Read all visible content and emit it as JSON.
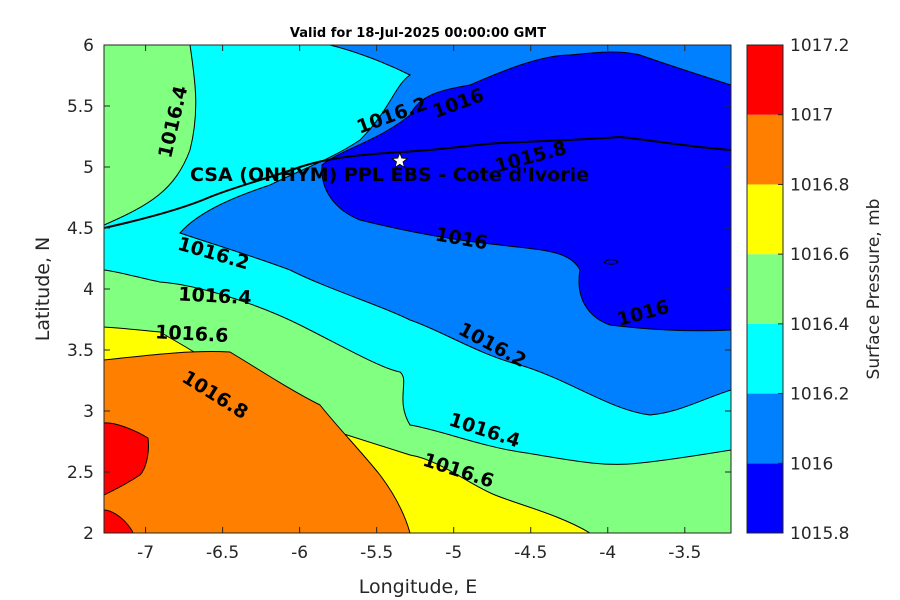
{
  "chart_data": {
    "type": "contour",
    "title": "Valid for 18-Jul-2025 00:00:00 GMT",
    "xlabel": "Longitude, E",
    "ylabel": "Latitude, N",
    "xlim": [
      -7.27,
      -3.2
    ],
    "ylim": [
      2,
      6
    ],
    "x_ticks": [
      -7,
      -6.5,
      -6,
      -5.5,
      -5,
      -4.5,
      -4,
      -3.5
    ],
    "x_tick_labels": [
      "-7",
      "-6.5",
      "-6",
      "-5.5",
      "-5",
      "-4.5",
      "-4",
      "-3.5"
    ],
    "y_ticks": [
      2,
      2.5,
      3,
      3.5,
      4,
      4.5,
      5,
      5.5,
      6
    ],
    "y_tick_labels": [
      "2",
      "2.5",
      "3",
      "3.5",
      "4",
      "4.5",
      "5",
      "5.5",
      "6"
    ],
    "colorbar": {
      "label": "Surface Pressure, mb",
      "levels": [
        1015.8,
        1016,
        1016.2,
        1016.4,
        1016.6,
        1016.8,
        1017,
        1017.2
      ],
      "tick_labels": [
        "1015.8",
        "1016",
        "1016.2",
        "1016.4",
        "1016.6",
        "1016.8",
        "1017",
        "1017.2"
      ],
      "colors": [
        "#0000ff",
        "#0080ff",
        "#00ffff",
        "#80ff80",
        "#ffff00",
        "#ff8000",
        "#ff0000",
        "#800000"
      ]
    },
    "contour_labels": [
      {
        "text": "1016.4",
        "x": -6.82,
        "y": 5.37,
        "rotation": -77
      },
      {
        "text": "1016.2",
        "x": -5.4,
        "y": 5.42,
        "rotation": -20
      },
      {
        "text": "1016",
        "x": -4.97,
        "y": 5.52,
        "rotation": -20
      },
      {
        "text": "1015.8",
        "x": -4.5,
        "y": 5.08,
        "rotation": -15
      },
      {
        "text": "1016.2",
        "x": -6.56,
        "y": 4.29,
        "rotation": 16
      },
      {
        "text": "1016",
        "x": -4.95,
        "y": 4.41,
        "rotation": 10
      },
      {
        "text": "1016.4",
        "x": -6.55,
        "y": 3.94,
        "rotation": 3
      },
      {
        "text": "1016",
        "x": -3.77,
        "y": 3.8,
        "rotation": -15
      },
      {
        "text": "1016.6",
        "x": -6.7,
        "y": 3.63,
        "rotation": 3
      },
      {
        "text": "1016.2",
        "x": -4.75,
        "y": 3.54,
        "rotation": 28
      },
      {
        "text": "1016.8",
        "x": -6.55,
        "y": 3.13,
        "rotation": 32
      },
      {
        "text": "1016.4",
        "x": -4.8,
        "y": 2.84,
        "rotation": 18
      },
      {
        "text": "1016.6",
        "x": -4.97,
        "y": 2.51,
        "rotation": 18
      }
    ],
    "site": {
      "name": "CSA (ONHYM) PPL EBS  - Cote d'Ivorie",
      "lon": -5.35,
      "lat": 5.05
    }
  }
}
